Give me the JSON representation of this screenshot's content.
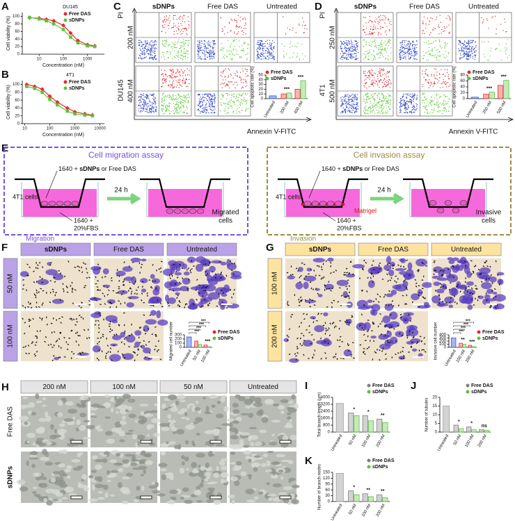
{
  "letters": [
    "A",
    "B",
    "C",
    "D",
    "E",
    "F",
    "G",
    "H",
    "I",
    "J",
    "K"
  ],
  "charts": [
    {
      "type": "line",
      "title": "DU145",
      "xlabel": "Concentration (nM)",
      "ylabel": "Cell viability (%)",
      "log_x": true,
      "x": [
        4,
        10,
        20,
        40,
        100,
        200,
        400,
        1000,
        2000
      ],
      "series": [
        {
          "name": "Free DAS",
          "color": "#e8262b",
          "values": [
            96,
            95,
            92,
            88,
            76,
            56,
            36,
            25,
            22
          ]
        },
        {
          "name": "sDNPs",
          "color": "#5cc23d",
          "values": [
            97,
            93,
            88,
            80,
            65,
            45,
            30,
            22,
            20
          ]
        }
      ],
      "xlim": [
        2,
        5000
      ],
      "xticks": [
        10,
        100,
        1000
      ],
      "ylim": [
        0,
        110
      ],
      "yticks": [
        0,
        20,
        40,
        60,
        80,
        100
      ],
      "legend": "top"
    },
    {
      "type": "line",
      "title": "4T1",
      "xlabel": "Concentration (nM)",
      "ylabel": "Cell viability (%)",
      "log_x": true,
      "x": [
        12,
        25,
        50,
        100,
        200,
        500,
        1000,
        2500,
        5000
      ],
      "series": [
        {
          "name": "Free DAS",
          "color": "#e8262b",
          "values": [
            100,
            95,
            88,
            70,
            55,
            40,
            30,
            25,
            22
          ]
        },
        {
          "name": "sDNPs",
          "color": "#5cc23d",
          "values": [
            95,
            90,
            80,
            62,
            48,
            32,
            25,
            22,
            20
          ]
        }
      ],
      "xlim": [
        8,
        15000
      ],
      "xticks": [
        10,
        100,
        1000,
        10000
      ],
      "ylim": [
        0,
        110
      ],
      "yticks": [
        0,
        20,
        40,
        60,
        80,
        100
      ],
      "legend": "top"
    },
    {
      "type": "bar",
      "ylabel": "Cell apoptotic rate (%)",
      "categories": [
        "Untreated",
        "200 nM",
        "400 nM"
      ],
      "control": {
        "color": "#3b5bdb",
        "value": 6
      },
      "series": [
        {
          "name": "Free DAS",
          "color": "#e8262b",
          "values": [
            null,
            10,
            20
          ]
        },
        {
          "name": "sDNPs",
          "color": "#5cc23d",
          "values": [
            null,
            12,
            38
          ]
        }
      ],
      "ylim": [
        0,
        50
      ],
      "yticks": [
        0,
        10,
        20,
        30,
        40,
        50
      ],
      "significance": [
        null,
        "***",
        "***"
      ],
      "legend": "top-left"
    },
    {
      "type": "bar",
      "ylabel": "Cell apoptotic rate (%)",
      "categories": [
        "Untreated",
        "250 nM",
        "500 nM"
      ],
      "control": {
        "color": "#3b5bdb",
        "value": 5
      },
      "series": [
        {
          "name": "Free DAS",
          "color": "#e8262b",
          "values": [
            null,
            15,
            45
          ]
        },
        {
          "name": "sDNPs",
          "color": "#5cc23d",
          "values": [
            null,
            22,
            62
          ]
        }
      ],
      "ylim": [
        0,
        80
      ],
      "yticks": [
        0,
        20,
        40,
        60,
        80
      ],
      "significance": [
        null,
        "***",
        "***"
      ],
      "legend": "top-left"
    },
    {
      "type": "bar",
      "ylabel": "Migrated cell number",
      "categories": [
        "Untreated",
        "50 nM",
        "100 nM"
      ],
      "control": {
        "color": "#3b5bdb",
        "value": 250
      },
      "series": [
        {
          "name": "Free DAS",
          "color": "#e8262b",
          "values": [
            null,
            150,
            55
          ]
        },
        {
          "name": "sDNPs",
          "color": "#5cc23d",
          "values": [
            null,
            70,
            15
          ]
        }
      ],
      "ylim": [
        0,
        300
      ],
      "yticks": [
        0,
        100,
        200,
        300
      ],
      "significance": [
        null,
        null,
        "***"
      ],
      "brackets": [
        "***",
        "***",
        "***",
        "***"
      ],
      "legend": "right"
    },
    {
      "type": "bar",
      "ylabel": "Invasive cell number",
      "categories": [
        "Untreated",
        "100 nM",
        "200 nM"
      ],
      "control": {
        "color": "#3b5bdb",
        "value": 300
      },
      "series": [
        {
          "name": "Free DAS",
          "color": "#e8262b",
          "values": [
            null,
            130,
            65
          ]
        },
        {
          "name": "sDNPs",
          "color": "#5cc23d",
          "values": [
            null,
            95,
            20
          ]
        }
      ],
      "ylim": [
        0,
        400
      ],
      "yticks": [
        0,
        100,
        200,
        300,
        400
      ],
      "significance": [
        null,
        "**",
        "***"
      ],
      "brackets": [
        "***",
        "***",
        "***",
        "***"
      ],
      "legend": "right"
    },
    {
      "type": "bar",
      "ylabel": "Total branch length (μm)",
      "categories": [
        "Untreated",
        "50 nM",
        "100 nM",
        "200 nM"
      ],
      "control": {
        "color": "#9e9e9e",
        "value": 3300
      },
      "series": [
        {
          "name": "Free DAS",
          "color": "#7f7f7f",
          "values": [
            null,
            2200,
            1900,
            1500
          ]
        },
        {
          "name": "sDNPs",
          "color": "#5cc23d",
          "values": [
            null,
            1900,
            1300,
            1100
          ]
        }
      ],
      "ylim": [
        0,
        4000
      ],
      "yticks": [
        0,
        800,
        1600,
        2400,
        3200,
        4000
      ],
      "significance": [
        null,
        "*",
        "*",
        "**"
      ],
      "legend": "top"
    },
    {
      "type": "bar",
      "ylabel": "Number of tubules",
      "categories": [
        "Untreated",
        "50 nM",
        "100 nM",
        "200 nM"
      ],
      "control": {
        "color": "#9e9e9e",
        "value": 15
      },
      "series": [
        {
          "name": "Free DAS",
          "color": "#7f7f7f",
          "values": [
            null,
            4,
            3,
            1.5
          ]
        },
        {
          "name": "sDNPs",
          "color": "#5cc23d",
          "values": [
            null,
            2,
            1.5,
            1
          ]
        }
      ],
      "ylim": [
        0,
        20
      ],
      "yticks": [
        0,
        5,
        10,
        15,
        20
      ],
      "significance": [
        null,
        "*",
        "*",
        "ns"
      ],
      "legend": "top"
    },
    {
      "type": "bar",
      "ylabel": "Number of branch nodes",
      "categories": [
        "Untreated",
        "50 nM",
        "100 nM",
        "200 nM"
      ],
      "control": {
        "color": "#9e9e9e",
        "value": 145
      },
      "series": [
        {
          "name": "Free DAS",
          "color": "#7f7f7f",
          "values": [
            null,
            55,
            40,
            35
          ]
        },
        {
          "name": "sDNPs",
          "color": "#5cc23d",
          "values": [
            null,
            35,
            25,
            20
          ]
        }
      ],
      "ylim": [
        0,
        150
      ],
      "yticks": [
        0,
        30,
        60,
        90,
        120,
        150
      ],
      "significance": [
        null,
        "*",
        "**",
        "**"
      ],
      "legend": "top"
    }
  ],
  "flow": [
    {
      "cols": [
        "sDNPs",
        "Free DAS",
        "Untreated"
      ],
      "rows": [
        "200 nM",
        "400 nM"
      ],
      "cell_line": "DU145",
      "ylabel": "PI",
      "xlabel": "Annexin V-FITC"
    },
    {
      "cols": [
        "sDNPs",
        "Free DAS",
        "Untreated"
      ],
      "rows": [
        "250 nM",
        "500 nM"
      ],
      "cell_line": "4T1",
      "ylabel": "PI",
      "xlabel": "Annexin V-FITC"
    }
  ],
  "assays": [
    {
      "title": "Cell migration assay",
      "color": "#7a4fe0",
      "medium": [
        "1640 + ",
        "sDNPs",
        " or Free DAS"
      ],
      "cells": "4T1 cells",
      "time": "24 h",
      "fbs": [
        "1640 +",
        "20%FBS"
      ],
      "result": [
        "Migrated",
        "cells"
      ]
    },
    {
      "title": "Cell invasion assay",
      "color": "#9c8a44",
      "medium": [
        "1640 + ",
        "sDNPs",
        " or Free DAS"
      ],
      "cells": "4T1 cells",
      "time": "24 h",
      "fbs": [
        "1640 +",
        "20%FBS"
      ],
      "result": [
        "Invasive",
        "cells"
      ],
      "matrigel": "Matrigel"
    }
  ],
  "micro": [
    {
      "title": "Migration",
      "cols": [
        "sDNPs",
        "Free DAS",
        "Untreated"
      ],
      "rows": [
        "50 nM",
        "100 nM"
      ],
      "header_color": "#b9a3e6"
    },
    {
      "title": "Invasion",
      "cols": [
        "sDNPs",
        "Free DAS",
        "Untreated"
      ],
      "rows": [
        "100 nM",
        "200 nM"
      ],
      "header_color": "#fde3a0"
    },
    {
      "cols": [
        "200 nM",
        "100 nM",
        "50 nM",
        "Untreated"
      ],
      "rows": [
        "Free DAS",
        "sDNPs"
      ],
      "header_color": "#e4e4e4"
    }
  ]
}
